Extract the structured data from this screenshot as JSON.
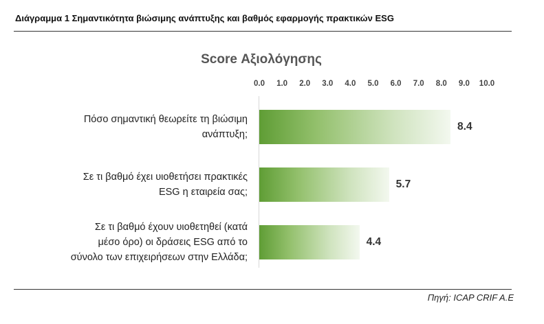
{
  "caption": "Διάγραμμα 1 Σημαντικότητα βιώσιμης ανάπτυξης και βαθμός εφαρμογής πρακτικών ESG",
  "source": "Πηγή: ICAP CRIF A.E",
  "chart_data": {
    "type": "bar",
    "orientation": "horizontal",
    "title": "Score Αξιολόγησης",
    "xlim": [
      0,
      10
    ],
    "ticks": [
      "0.0",
      "1.0",
      "2.0",
      "3.0",
      "4.0",
      "5.0",
      "6.0",
      "7.0",
      "8.0",
      "9.0",
      "10.0"
    ],
    "categories": [
      [
        "Πόσο σημαντική θεωρείτε τη βιώσιμη",
        "ανάπτυξη;"
      ],
      [
        "Σε τι βαθμό έχει υιοθετήσει πρακτικές",
        "ESG η εταιρεία σας;"
      ],
      [
        "Σε τι βαθμό έχουν υιοθετηθεί (κατά",
        "μέσο όρο) οι δράσεις ESG από το",
        "σύνολο των επιχειρήσεων στην Ελλάδα;"
      ]
    ],
    "values": [
      8.4,
      5.7,
      4.4
    ],
    "value_labels": [
      "8.4",
      "5.7",
      "4.4"
    ],
    "grid": false,
    "legend": "none",
    "bar_color": "#5f9d35"
  }
}
